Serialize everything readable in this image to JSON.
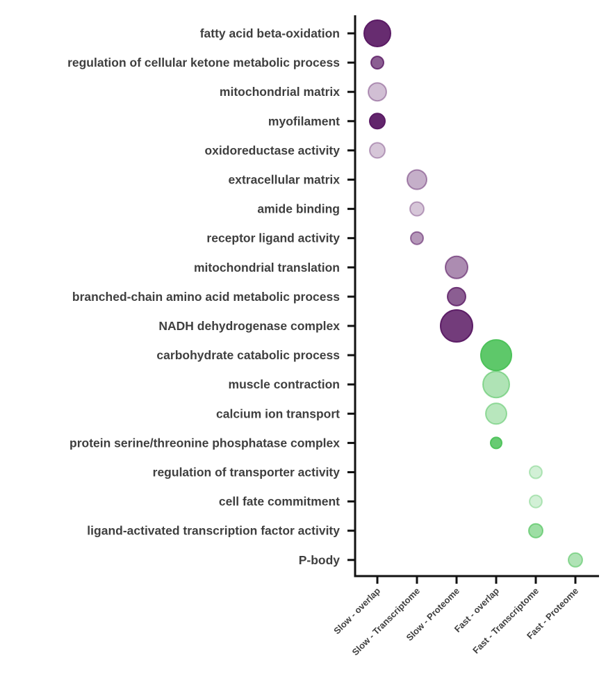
{
  "chart_data": {
    "type": "scatter",
    "title": "",
    "xlabel": "",
    "ylabel": "",
    "grid": false,
    "x_categories": [
      "Slow - overlap",
      "Slow - Transcriptome",
      "Slow - Proteome",
      "Fast - overlap",
      "Fast - Transcriptome",
      "Fast - Proteome"
    ],
    "y_categories": [
      "fatty acid beta-oxidation",
      "regulation of cellular ketone metabolic process",
      "mitochondrial matrix",
      "myofilament",
      "oxidoreductase activity",
      "extracellular matrix",
      "amide binding",
      "receptor ligand activity",
      "mitochondrial translation",
      "branched-chain amino acid metabolic process",
      "NADH dehydrogenase complex",
      "carbohydrate catabolic process",
      "muscle contraction",
      "calcium ion transport",
      "protein serine/threonine phosphatase complex",
      "regulation of transporter activity",
      "cell fate commitment",
      "ligand-activated transcription factor activity",
      "P-body"
    ],
    "points": [
      {
        "x": "Slow - overlap",
        "y": "fatty acid beta-oxidation",
        "size": 19,
        "color": "#5a1a64",
        "opacity": 0.92
      },
      {
        "x": "Slow - overlap",
        "y": "regulation of cellular ketone metabolic process",
        "size": 9,
        "color": "#5a1a64",
        "opacity": 0.7
      },
      {
        "x": "Slow - overlap",
        "y": "mitochondrial matrix",
        "size": 13,
        "color": "#5a1a64",
        "opacity": 0.28
      },
      {
        "x": "Slow - overlap",
        "y": "myofilament",
        "size": 11,
        "color": "#5a1a64",
        "opacity": 0.95
      },
      {
        "x": "Slow - overlap",
        "y": "oxidoreductase activity",
        "size": 11,
        "color": "#5a1a64",
        "opacity": 0.25
      },
      {
        "x": "Slow - Transcriptome",
        "y": "extracellular matrix",
        "size": 14,
        "color": "#5a1a64",
        "opacity": 0.35
      },
      {
        "x": "Slow - Transcriptome",
        "y": "amide binding",
        "size": 10,
        "color": "#5a1a64",
        "opacity": 0.25
      },
      {
        "x": "Slow - Transcriptome",
        "y": "receptor ligand activity",
        "size": 9,
        "color": "#5a1a64",
        "opacity": 0.45
      },
      {
        "x": "Slow - Proteome",
        "y": "mitochondrial translation",
        "size": 16,
        "color": "#5a1a64",
        "opacity": 0.5
      },
      {
        "x": "Slow - Proteome",
        "y": "branched-chain amino acid metabolic process",
        "size": 13,
        "color": "#5a1a64",
        "opacity": 0.7
      },
      {
        "x": "Slow - Proteome",
        "y": "NADH dehydrogenase complex",
        "size": 23,
        "color": "#5a1a64",
        "opacity": 0.85
      },
      {
        "x": "Fast - overlap",
        "y": "carbohydrate catabolic process",
        "size": 22,
        "color": "#4dc25a",
        "opacity": 0.9
      },
      {
        "x": "Fast - overlap",
        "y": "muscle contraction",
        "size": 19,
        "color": "#4dc25a",
        "opacity": 0.45
      },
      {
        "x": "Fast - overlap",
        "y": "calcium ion transport",
        "size": 15,
        "color": "#4dc25a",
        "opacity": 0.4
      },
      {
        "x": "Fast - overlap",
        "y": "protein serine/threonine phosphatase complex",
        "size": 8,
        "color": "#4dc25a",
        "opacity": 0.85
      },
      {
        "x": "Fast - Transcriptome",
        "y": "regulation of transporter activity",
        "size": 9,
        "color": "#4dc25a",
        "opacity": 0.25
      },
      {
        "x": "Fast - Transcriptome",
        "y": "cell fate commitment",
        "size": 9,
        "color": "#4dc25a",
        "opacity": 0.25
      },
      {
        "x": "Fast - Transcriptome",
        "y": "ligand-activated transcription factor activity",
        "size": 10,
        "color": "#4dc25a",
        "opacity": 0.55
      },
      {
        "x": "Fast - Proteome",
        "y": "P-body",
        "size": 10,
        "color": "#4dc25a",
        "opacity": 0.45
      }
    ],
    "colors": {
      "slow": "#5a1a64",
      "fast": "#4dc25a",
      "axis": "#111111",
      "text": "#3f3f3f"
    }
  }
}
